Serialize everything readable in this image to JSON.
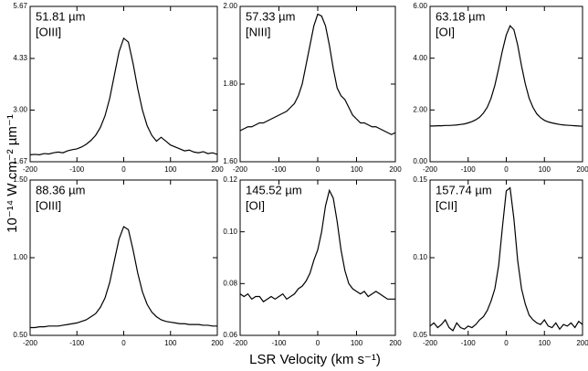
{
  "chart_data": [
    {
      "type": "line",
      "title": "51.81 µm",
      "subtitle": "[OIII]",
      "color": "#000000",
      "x": [
        -200,
        -190,
        -180,
        -170,
        -160,
        -150,
        -140,
        -130,
        -120,
        -110,
        -100,
        -90,
        -80,
        -70,
        -60,
        -50,
        -40,
        -30,
        -20,
        -10,
        0,
        10,
        20,
        30,
        40,
        50,
        60,
        70,
        80,
        90,
        100,
        110,
        120,
        130,
        140,
        150,
        160,
        170,
        180,
        190,
        200
      ],
      "values": [
        1.85,
        1.86,
        1.85,
        1.88,
        1.87,
        1.9,
        1.92,
        1.9,
        1.95,
        1.98,
        2.0,
        2.05,
        2.12,
        2.22,
        2.35,
        2.55,
        2.85,
        3.3,
        3.9,
        4.5,
        4.85,
        4.75,
        4.2,
        3.55,
        3.0,
        2.6,
        2.35,
        2.2,
        2.3,
        2.2,
        2.1,
        2.05,
        2.0,
        1.95,
        1.97,
        1.92,
        1.9,
        1.93,
        1.88,
        1.9,
        1.86
      ],
      "xlim": [
        -200,
        200
      ],
      "xticks": [
        -200,
        -100,
        0,
        100,
        200
      ],
      "ylim": [
        1.67,
        5.67
      ],
      "yticks": [
        1.67,
        {
          "value": 3,
          "label": "3.00"
        },
        4.33,
        5.67
      ]
    },
    {
      "type": "line",
      "title": "57.33 µm",
      "subtitle": "[NIII]",
      "color": "#000000",
      "x": [
        -200,
        -190,
        -180,
        -170,
        -160,
        -150,
        -140,
        -130,
        -120,
        -110,
        -100,
        -90,
        -80,
        -70,
        -60,
        -50,
        -40,
        -30,
        -20,
        -10,
        0,
        10,
        20,
        30,
        40,
        50,
        60,
        70,
        80,
        90,
        100,
        110,
        120,
        130,
        140,
        150,
        160,
        170,
        180,
        190,
        200
      ],
      "values": [
        1.68,
        1.685,
        1.69,
        1.69,
        1.695,
        1.7,
        1.7,
        1.705,
        1.71,
        1.715,
        1.72,
        1.725,
        1.73,
        1.74,
        1.75,
        1.77,
        1.8,
        1.85,
        1.9,
        1.95,
        1.98,
        1.975,
        1.95,
        1.9,
        1.84,
        1.79,
        1.77,
        1.76,
        1.74,
        1.72,
        1.71,
        1.7,
        1.7,
        1.695,
        1.69,
        1.69,
        1.685,
        1.68,
        1.675,
        1.67,
        1.675
      ],
      "xlim": [
        -200,
        200
      ],
      "xticks": [
        -200,
        -100,
        0,
        100,
        200
      ],
      "ylim": [
        1.6,
        2.0
      ],
      "yticks": [
        {
          "value": 1.6,
          "label": "1.60"
        },
        {
          "value": 1.8,
          "label": "1.80"
        },
        {
          "value": 2,
          "label": "2.00"
        }
      ]
    },
    {
      "type": "line",
      "title": "63.18 µm",
      "subtitle": "[OI]",
      "color": "#000000",
      "x": [
        -200,
        -190,
        -180,
        -170,
        -160,
        -150,
        -140,
        -130,
        -120,
        -110,
        -100,
        -90,
        -80,
        -70,
        -60,
        -50,
        -40,
        -30,
        -20,
        -10,
        0,
        10,
        20,
        30,
        40,
        50,
        60,
        70,
        80,
        90,
        100,
        110,
        120,
        130,
        140,
        150,
        160,
        170,
        180,
        190,
        200
      ],
      "values": [
        1.38,
        1.38,
        1.39,
        1.39,
        1.4,
        1.4,
        1.41,
        1.42,
        1.44,
        1.46,
        1.5,
        1.55,
        1.62,
        1.72,
        1.88,
        2.1,
        2.45,
        2.95,
        3.6,
        4.3,
        4.9,
        5.25,
        5.1,
        4.5,
        3.7,
        3.0,
        2.45,
        2.1,
        1.85,
        1.7,
        1.6,
        1.54,
        1.5,
        1.47,
        1.44,
        1.42,
        1.41,
        1.4,
        1.39,
        1.38,
        1.37
      ],
      "xlim": [
        -200,
        200
      ],
      "xticks": [
        -200,
        -100,
        0,
        100,
        200
      ],
      "ylim": [
        0,
        6
      ],
      "yticks": [
        {
          "value": 0,
          "label": "0.00"
        },
        {
          "value": 2,
          "label": "2.00"
        },
        {
          "value": 4,
          "label": "4.00"
        },
        {
          "value": 6,
          "label": "6.00"
        }
      ]
    },
    {
      "type": "line",
      "title": "88.36 µm",
      "subtitle": "[OIII]",
      "color": "#000000",
      "x": [
        -200,
        -190,
        -180,
        -170,
        -160,
        -150,
        -140,
        -130,
        -120,
        -110,
        -100,
        -90,
        -80,
        -70,
        -60,
        -50,
        -40,
        -30,
        -20,
        -10,
        0,
        10,
        20,
        30,
        40,
        50,
        60,
        70,
        80,
        90,
        100,
        110,
        120,
        130,
        140,
        150,
        160,
        170,
        180,
        190,
        200
      ],
      "values": [
        0.55,
        0.55,
        0.555,
        0.555,
        0.56,
        0.56,
        0.56,
        0.565,
        0.57,
        0.575,
        0.58,
        0.59,
        0.6,
        0.62,
        0.64,
        0.68,
        0.74,
        0.84,
        0.98,
        1.12,
        1.2,
        1.18,
        1.05,
        0.9,
        0.78,
        0.7,
        0.65,
        0.62,
        0.6,
        0.59,
        0.585,
        0.58,
        0.575,
        0.575,
        0.57,
        0.57,
        0.57,
        0.565,
        0.565,
        0.56,
        0.56
      ],
      "xlim": [
        -200,
        200
      ],
      "xticks": [
        -200,
        -100,
        0,
        100,
        200
      ],
      "ylim": [
        0.5,
        1.5
      ],
      "yticks": [
        {
          "value": 0.5,
          "label": "0.50"
        },
        {
          "value": 1,
          "label": "1.00"
        },
        {
          "value": 1.5,
          "label": "1.50"
        }
      ]
    },
    {
      "type": "line",
      "title": "145.52 µm",
      "subtitle": "[OI]",
      "color": "#000000",
      "x": [
        -200,
        -190,
        -180,
        -170,
        -160,
        -150,
        -140,
        -130,
        -120,
        -110,
        -100,
        -90,
        -80,
        -70,
        -60,
        -50,
        -40,
        -30,
        -20,
        -10,
        0,
        10,
        20,
        30,
        40,
        50,
        60,
        70,
        80,
        90,
        100,
        110,
        120,
        130,
        140,
        150,
        160,
        170,
        180,
        190,
        200
      ],
      "values": [
        0.076,
        0.075,
        0.076,
        0.074,
        0.075,
        0.075,
        0.073,
        0.074,
        0.075,
        0.074,
        0.075,
        0.076,
        0.074,
        0.075,
        0.076,
        0.078,
        0.079,
        0.081,
        0.084,
        0.089,
        0.093,
        0.1,
        0.11,
        0.116,
        0.113,
        0.104,
        0.093,
        0.085,
        0.08,
        0.078,
        0.077,
        0.076,
        0.077,
        0.075,
        0.076,
        0.077,
        0.076,
        0.075,
        0.074,
        0.074,
        0.074
      ],
      "xlim": [
        -200,
        200
      ],
      "xticks": [
        -200,
        -100,
        0,
        100,
        200
      ],
      "ylim": [
        0.06,
        0.12
      ],
      "yticks": [
        0.06,
        0.08,
        {
          "value": 0.1,
          "label": "0.10"
        },
        0.12
      ]
    },
    {
      "type": "line",
      "title": "157.74 µm",
      "subtitle": "[CII]",
      "color": "#000000",
      "x": [
        -200,
        -190,
        -180,
        -170,
        -160,
        -150,
        -140,
        -130,
        -120,
        -110,
        -100,
        -90,
        -80,
        -70,
        -60,
        -50,
        -40,
        -30,
        -20,
        -10,
        0,
        10,
        20,
        30,
        40,
        50,
        60,
        70,
        80,
        90,
        100,
        110,
        120,
        130,
        140,
        150,
        160,
        170,
        180,
        190,
        200
      ],
      "values": [
        0.056,
        0.058,
        0.055,
        0.057,
        0.06,
        0.055,
        0.053,
        0.058,
        0.055,
        0.054,
        0.056,
        0.055,
        0.057,
        0.06,
        0.062,
        0.066,
        0.072,
        0.08,
        0.095,
        0.12,
        0.143,
        0.145,
        0.125,
        0.098,
        0.08,
        0.07,
        0.063,
        0.06,
        0.058,
        0.057,
        0.06,
        0.056,
        0.055,
        0.058,
        0.054,
        0.057,
        0.056,
        0.058,
        0.055,
        0.059,
        0.057
      ],
      "xlim": [
        -200,
        200
      ],
      "xticks": [
        -200,
        -100,
        0,
        100,
        200
      ],
      "ylim": [
        0.05,
        0.15
      ],
      "yticks": [
        0.05,
        {
          "value": 0.1,
          "label": "0.10"
        },
        0.15
      ]
    }
  ],
  "shared": {
    "xlabel": "LSR Velocity (km s⁻¹)",
    "ylabel": "10⁻¹⁴ W cm⁻² µm⁻¹"
  }
}
